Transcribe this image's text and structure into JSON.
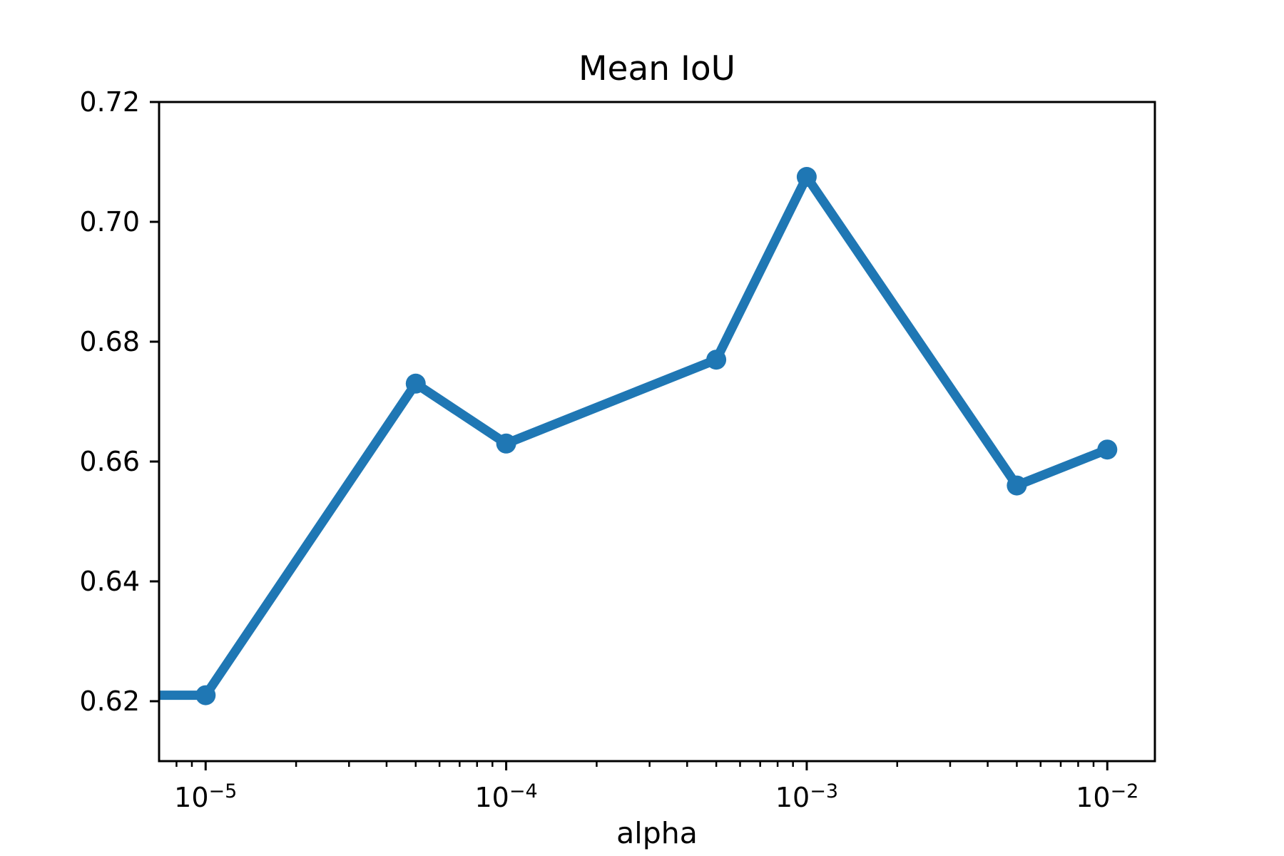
{
  "figure": {
    "title": "Mean IoU",
    "background_color": "#ffffff",
    "axes_color": "#000000",
    "text_color": "#000000"
  },
  "chart_data": {
    "type": "line",
    "title": "Mean IoU",
    "xlabel": "alpha",
    "ylabel": "",
    "x_scale": "log",
    "y_scale": "linear",
    "grid": false,
    "legend": null,
    "series": [
      {
        "name": "Mean IoU",
        "x": [
          1e-05,
          5e-05,
          0.0001,
          0.0005,
          0.001,
          0.005,
          0.01
        ],
        "y": [
          0.621,
          0.673,
          0.663,
          0.677,
          0.7075,
          0.656,
          0.662
        ],
        "line_color": "#1f77b4",
        "marker": "circle",
        "line_extends_to_left_edge": true,
        "left_edge_y": 0.621
      }
    ],
    "xlim": [
      7e-06,
      0.0144
    ],
    "ylim": [
      0.61,
      0.72
    ],
    "x_major_ticks": [
      {
        "value": 1e-05,
        "base": "10",
        "exponent": "−5"
      },
      {
        "value": 0.0001,
        "base": "10",
        "exponent": "−4"
      },
      {
        "value": 0.001,
        "base": "10",
        "exponent": "−3"
      },
      {
        "value": 0.01,
        "base": "10",
        "exponent": "−2"
      }
    ],
    "x_minor_tick_subs": [
      2,
      3,
      4,
      5,
      6,
      7,
      8,
      9
    ],
    "y_ticks": [
      {
        "value": 0.62,
        "label": "0.62"
      },
      {
        "value": 0.64,
        "label": "0.64"
      },
      {
        "value": 0.66,
        "label": "0.66"
      },
      {
        "value": 0.68,
        "label": "0.68"
      },
      {
        "value": 0.7,
        "label": "0.70"
      },
      {
        "value": 0.72,
        "label": "0.72"
      }
    ]
  }
}
